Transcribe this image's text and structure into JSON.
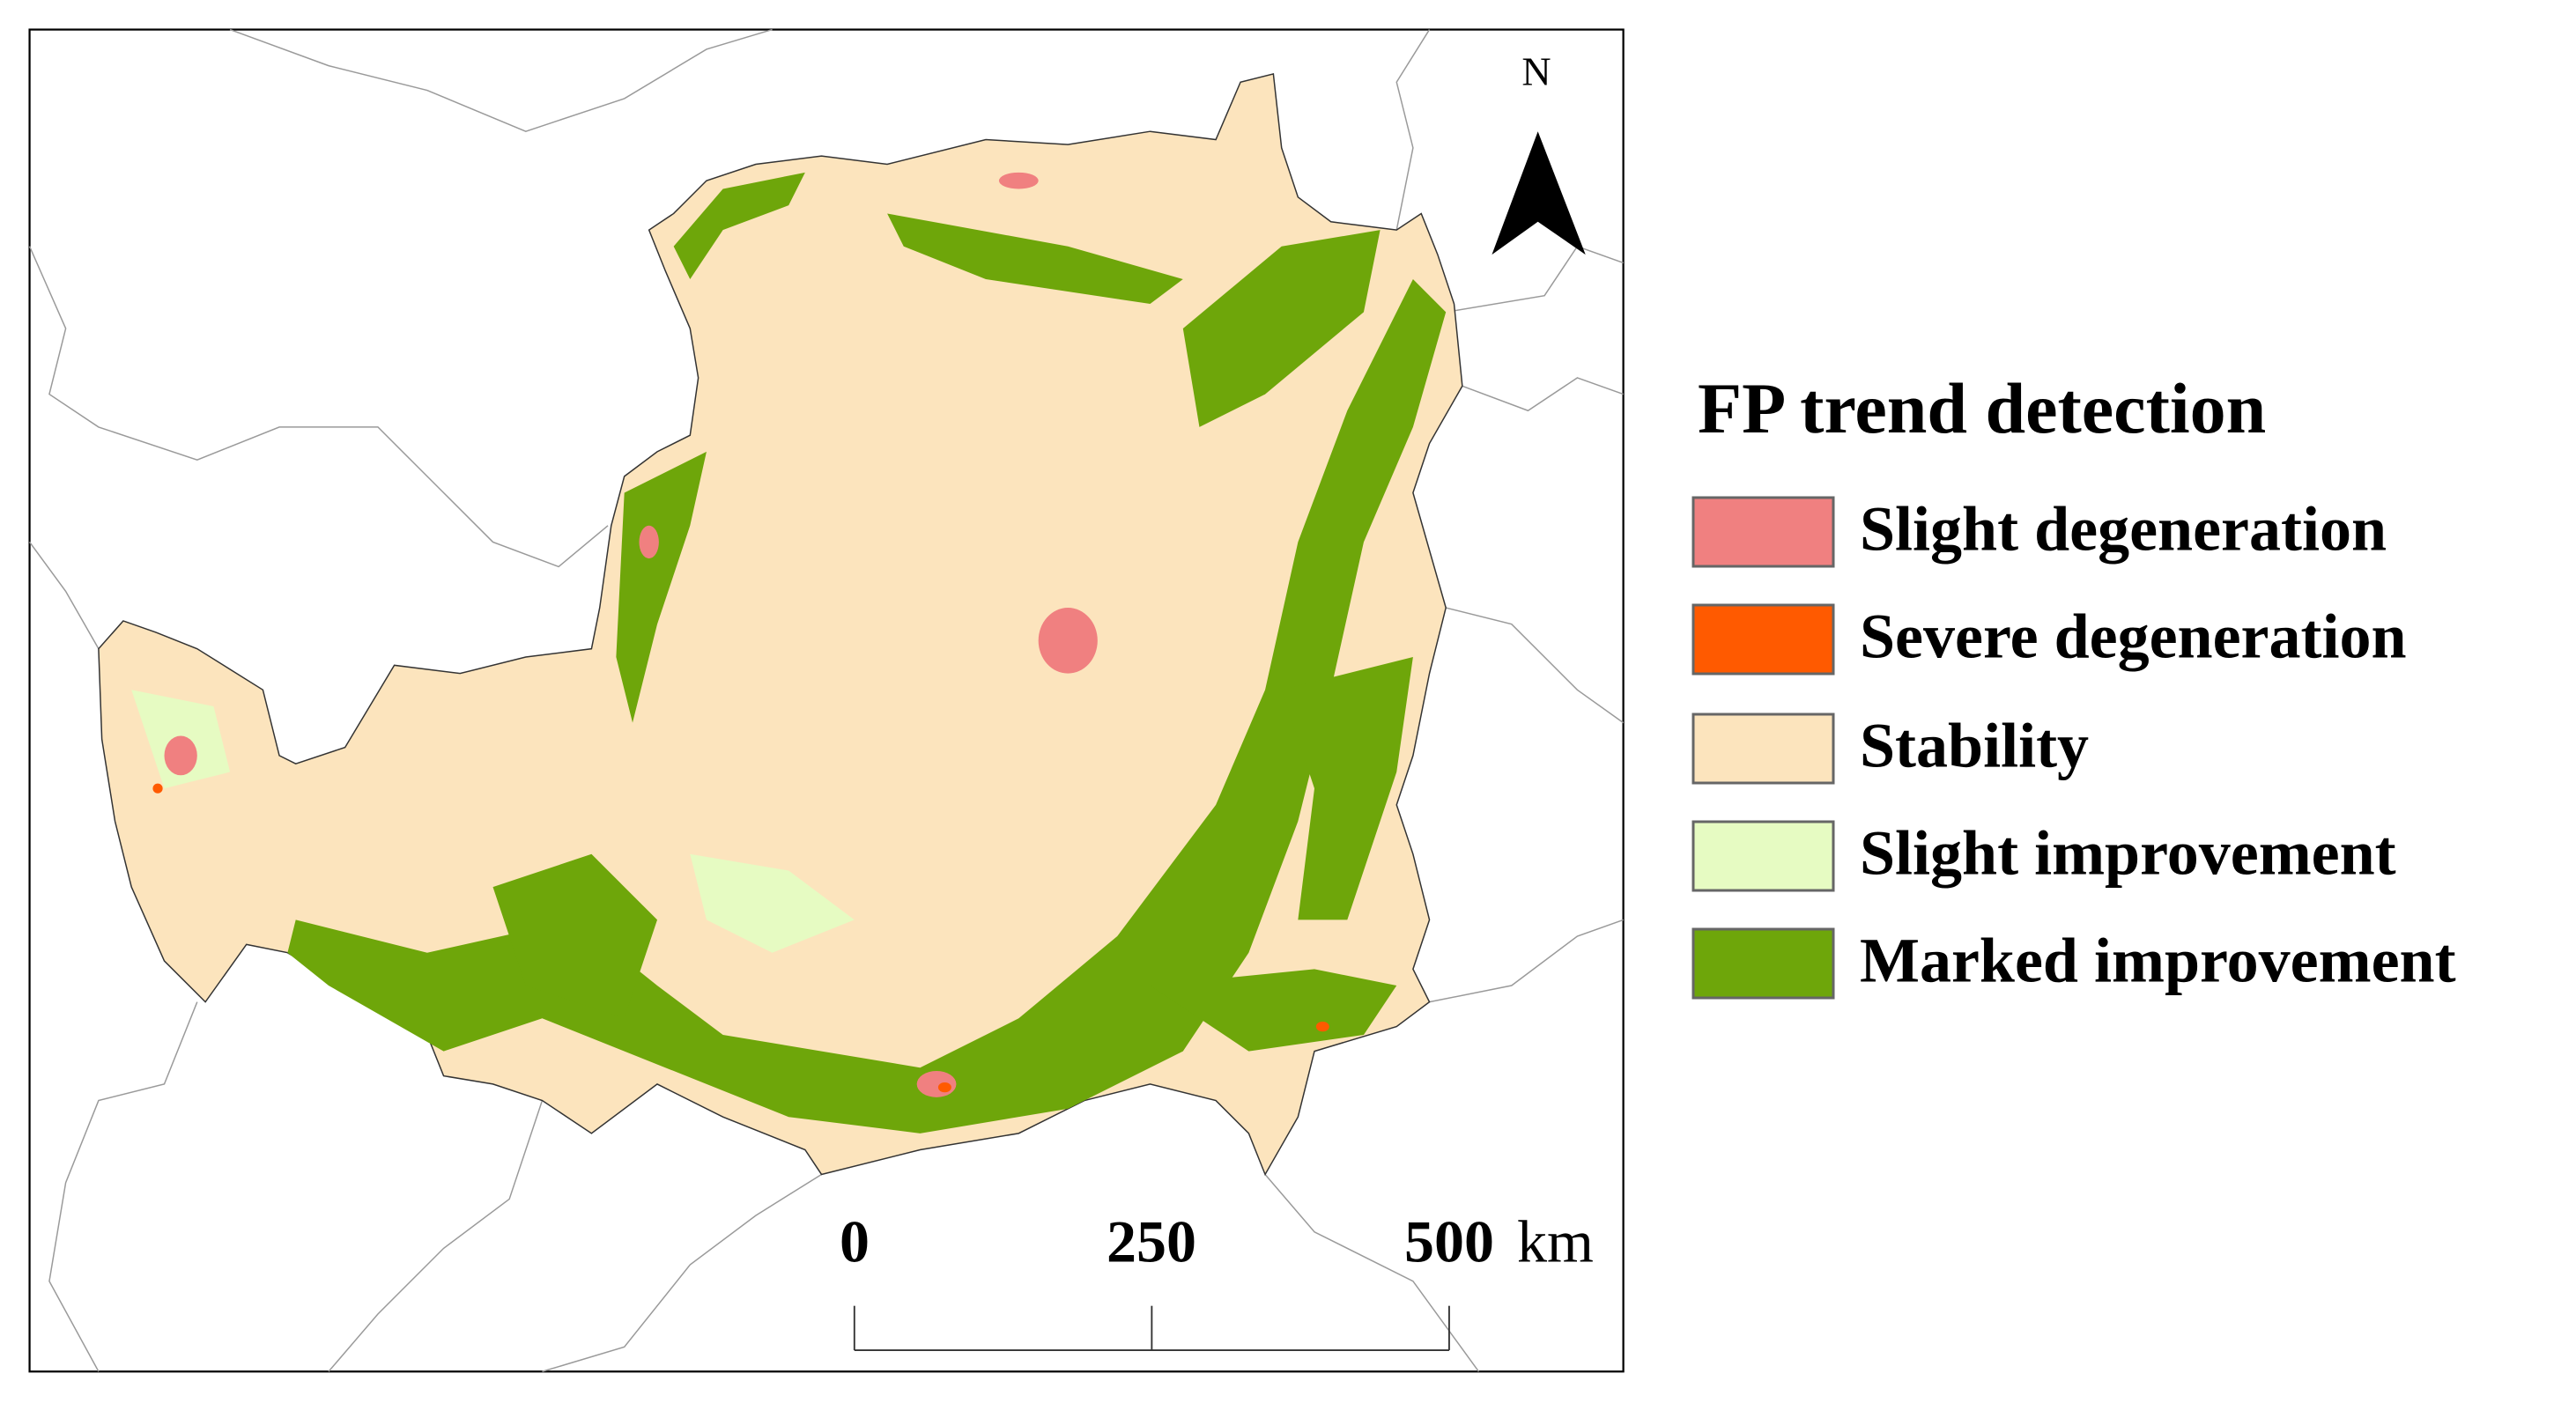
{
  "map": {
    "north_label": "N",
    "legend": {
      "title": "FP trend detection",
      "items": [
        {
          "label": "Slight degeneration",
          "color": "#f08080"
        },
        {
          "label": "Severe degeneration",
          "color": "#ff5a00"
        },
        {
          "label": "Stability",
          "color": "#fce4bd"
        },
        {
          "label": "Slight improvement",
          "color": "#e6fbc2"
        },
        {
          "label": "Marked improvement",
          "color": "#6ea60a"
        }
      ]
    },
    "scale_bar": {
      "labels": [
        "0",
        "250",
        "500"
      ],
      "unit": "km"
    }
  }
}
